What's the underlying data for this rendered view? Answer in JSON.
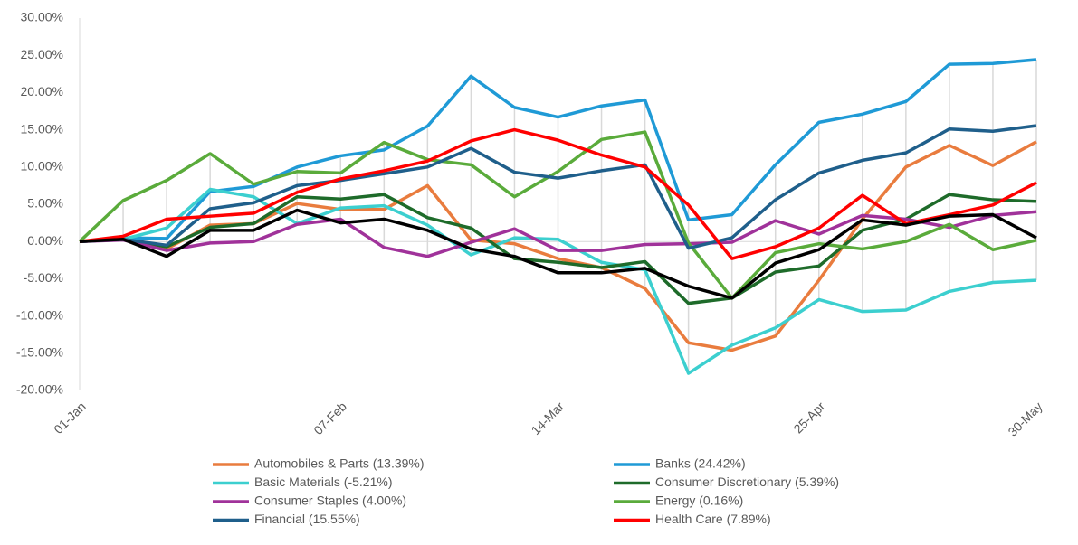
{
  "chart_data": {
    "type": "line",
    "categories": [
      "01-Jan",
      null,
      null,
      null,
      null,
      null,
      "07-Feb",
      null,
      null,
      null,
      null,
      "14-Mar",
      null,
      null,
      null,
      null,
      null,
      "25-Apr",
      null,
      null,
      null,
      null,
      "30-May"
    ],
    "ylim": [
      -20,
      30
    ],
    "yticks": [
      {
        "value": -20,
        "label": "-20.00%"
      },
      {
        "value": -15,
        "label": "-15.00%"
      },
      {
        "value": -10,
        "label": "-10.00%"
      },
      {
        "value": -5,
        "label": "-5.00%"
      },
      {
        "value": 0,
        "label": "0.00%"
      },
      {
        "value": 5,
        "label": "5.00%"
      },
      {
        "value": 10,
        "label": "10.00%"
      },
      {
        "value": 15,
        "label": "15.00%"
      },
      {
        "value": 20,
        "label": "20.00%"
      },
      {
        "value": 25,
        "label": "25.00%"
      },
      {
        "value": 30,
        "label": "30.00%"
      }
    ],
    "hilo_lines": true,
    "legend": "bottom",
    "series": [
      {
        "name": "Automobiles & Parts (13.39%)",
        "color": "#e97c3e",
        "values": [
          0,
          0.3,
          -1,
          2.2,
          2.4,
          5.1,
          4.3,
          4.3,
          7.5,
          0.2,
          -0.3,
          -2.3,
          -3.5,
          -6.3,
          -13.6,
          -14.6,
          -12.7,
          -5.2,
          3,
          10,
          12.9,
          10.2,
          13.39
        ]
      },
      {
        "name": "Banks (24.42%)",
        "color": "#1f9ad6",
        "values": [
          0,
          0.5,
          0.4,
          6.7,
          7.4,
          10,
          11.5,
          12.3,
          15.5,
          22.2,
          18,
          16.7,
          18.2,
          19,
          2.9,
          3.6,
          10.3,
          16,
          17.1,
          18.8,
          23.8,
          23.9,
          24.42
        ]
      },
      {
        "name": "Basic Materials (-5.21%)",
        "color": "#3ccfcf",
        "values": [
          0,
          0.3,
          1.8,
          7,
          6,
          2.4,
          4.5,
          4.8,
          2.2,
          -1.8,
          0.5,
          0.3,
          -2.8,
          -3.8,
          -17.7,
          -13.9,
          -11.6,
          -7.8,
          -9.4,
          -9.2,
          -6.7,
          -5.5,
          -5.21
        ]
      },
      {
        "name": "Consumer Discretionary (5.39%)",
        "color": "#1e6b2a",
        "values": [
          0,
          0.3,
          -0.7,
          1.9,
          2.4,
          6,
          5.7,
          6.3,
          3.2,
          1.8,
          -2.3,
          -2.8,
          -3.5,
          -2.7,
          -8.3,
          -7.6,
          -4.1,
          -3.3,
          1.5,
          3,
          6.3,
          5.6,
          5.39
        ]
      },
      {
        "name": "Consumer Staples (4.00%)",
        "color": "#a0329a",
        "values": [
          0,
          0.2,
          -1.2,
          -0.2,
          0,
          2.3,
          3,
          -0.8,
          -2,
          -0.1,
          1.7,
          -1.2,
          -1.2,
          -0.4,
          -0.3,
          -0.1,
          2.8,
          1,
          3.5,
          3,
          1.9,
          3.5,
          4.0
        ]
      },
      {
        "name": "Energy (0.16%)",
        "color": "#5aab3b",
        "values": [
          0,
          5.5,
          8.2,
          11.8,
          7.7,
          9.4,
          9.2,
          13.3,
          11,
          10.3,
          6,
          9.4,
          13.7,
          14.7,
          -0.2,
          -7.6,
          -1.5,
          -0.3,
          -1,
          0,
          2.3,
          -1.1,
          0.16
        ]
      },
      {
        "name": "Financial (15.55%)",
        "color": "#1f5f8b",
        "values": [
          0,
          0.3,
          -0.5,
          4.4,
          5.2,
          7.5,
          8.2,
          9.1,
          10,
          12.5,
          9.3,
          8.5,
          9.5,
          10.3,
          -0.9,
          0.5,
          5.6,
          9.2,
          10.9,
          11.9,
          15.1,
          14.8,
          15.55
        ]
      },
      {
        "name": "Health Care (7.89%)",
        "color": "#ff0000",
        "values": [
          0,
          0.7,
          3,
          3.4,
          3.8,
          6.6,
          8.4,
          9.5,
          10.8,
          13.5,
          15,
          13.6,
          11.6,
          10,
          4.9,
          -2.3,
          -0.7,
          1.8,
          6.2,
          2.4,
          3.6,
          4.9,
          7.89
        ]
      },
      {
        "color": "#000000",
        "values": [
          0,
          0.3,
          -2,
          1.5,
          1.5,
          4.2,
          2.5,
          3,
          1.5,
          -1,
          -2,
          -4.2,
          -4.2,
          -3.6,
          -6,
          -7.6,
          -2.9,
          -1.1,
          2.9,
          2.2,
          3.4,
          3.6,
          0.5
        ]
      }
    ]
  }
}
